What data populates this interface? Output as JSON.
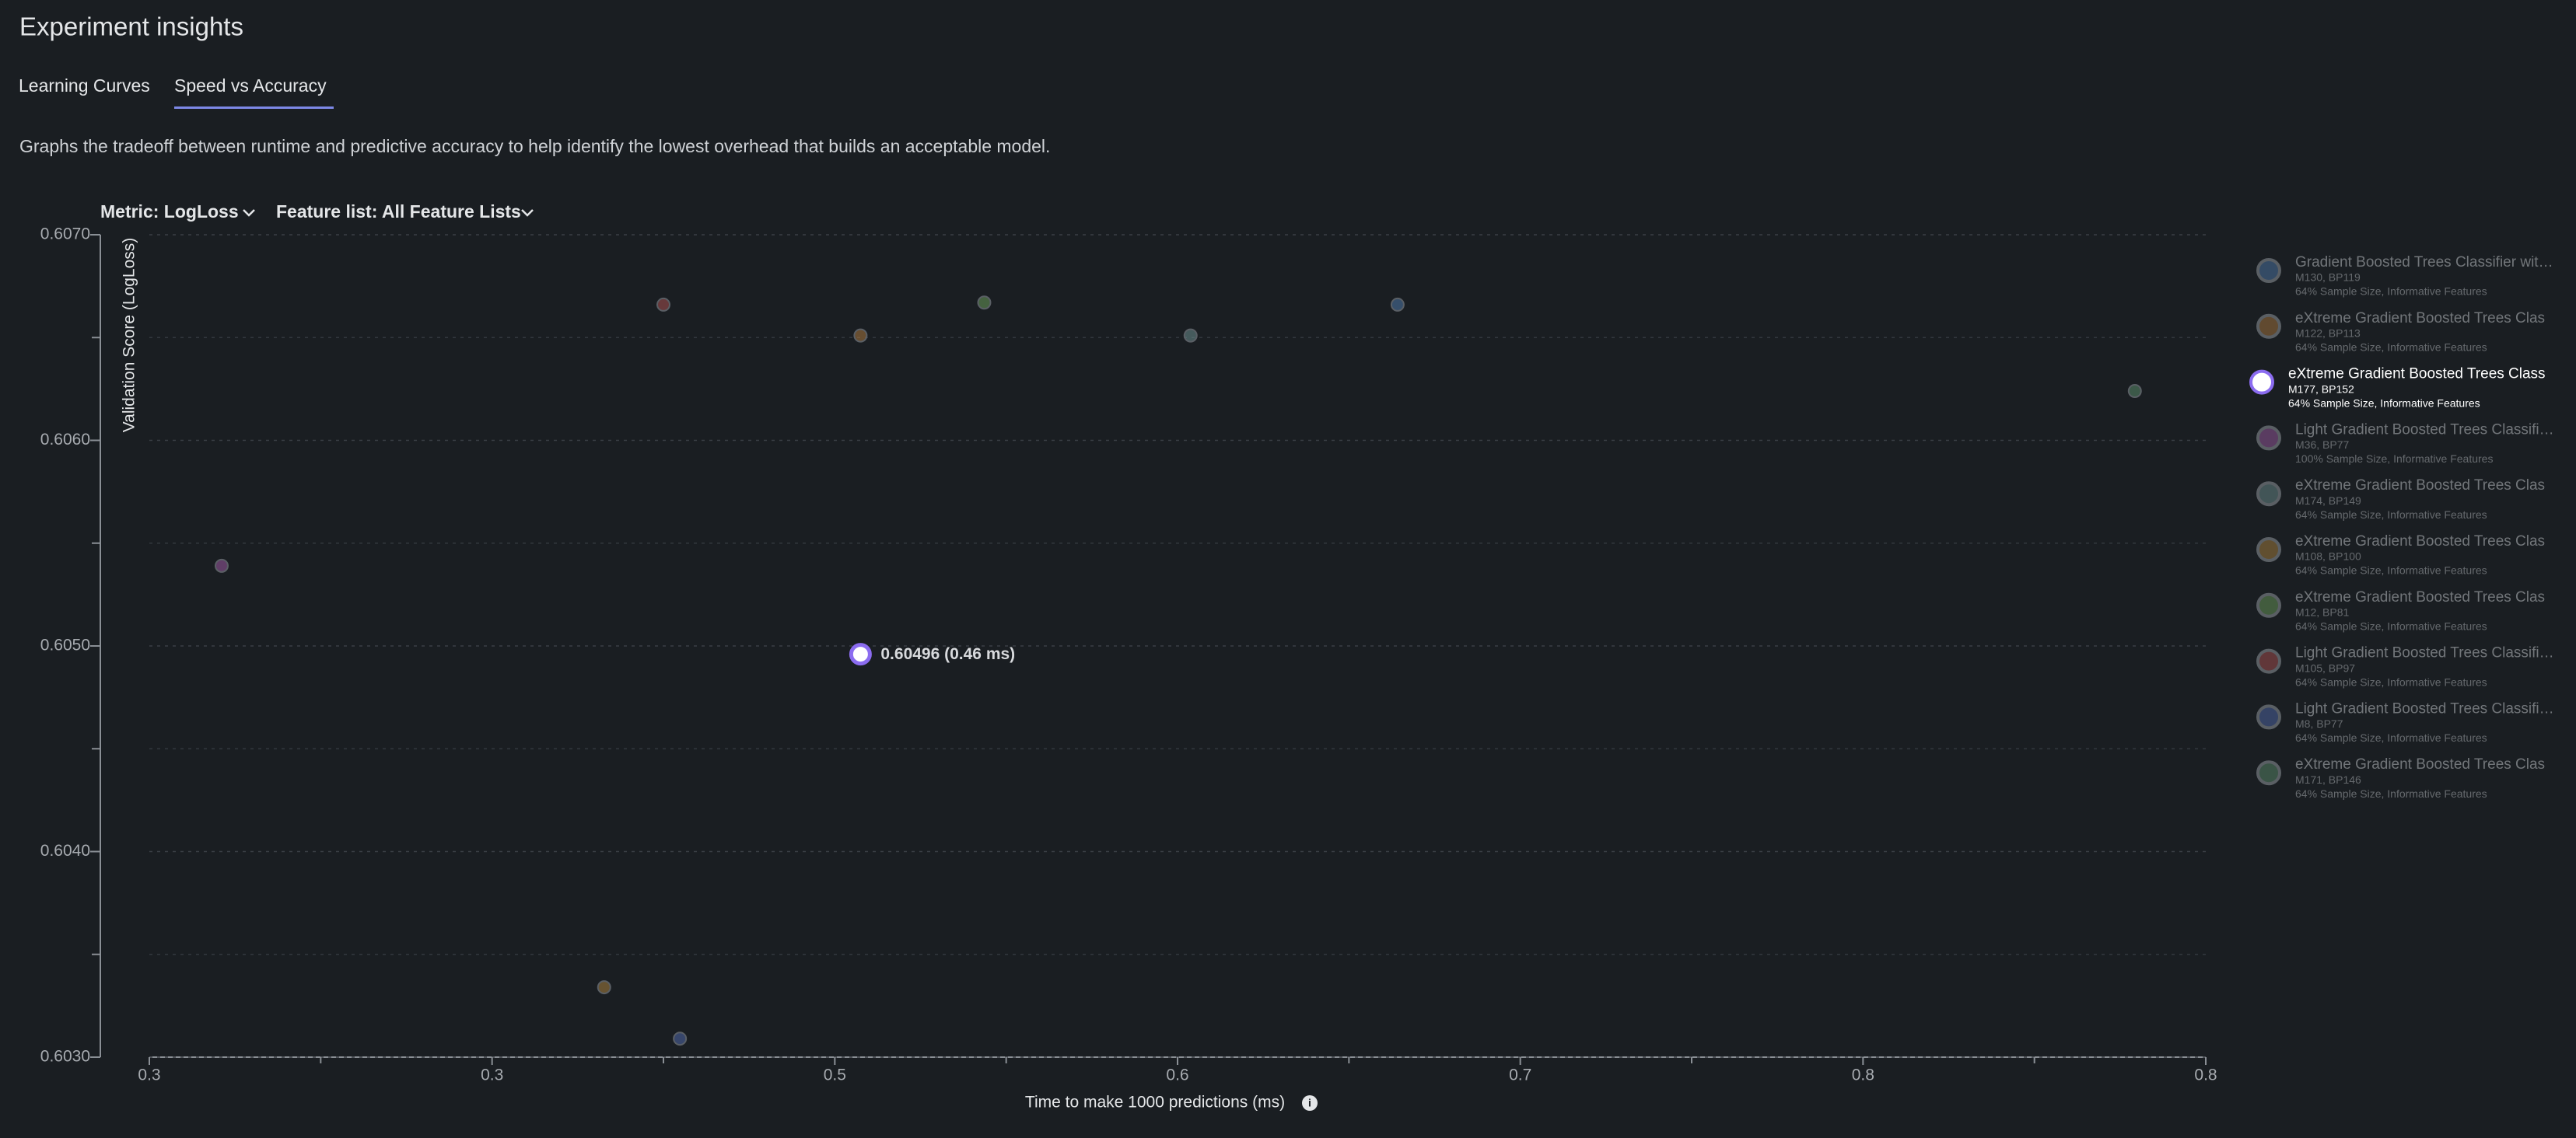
{
  "header": {
    "title": "Experiment insights",
    "tabs": [
      "Learning Curves",
      "Speed vs Accuracy"
    ],
    "active_tab": 1,
    "description": "Graphs the tradeoff between runtime and predictive accuracy to help identify the lowest overhead that builds an acceptable model.",
    "metric": "Metric: LogLoss",
    "feature_list": "Feature list: All Feature Lists"
  },
  "chart_data": {
    "type": "scatter",
    "x_label": "Time to make 1000 predictions (ms)",
    "y_label": "Validation Score (LogLoss)",
    "xlim": [
      0.25,
      0.85
    ],
    "ylim": [
      0.603,
      0.607
    ],
    "xticks": [
      {
        "value": 0.25,
        "label": "0.3"
      },
      {
        "value": 0.35,
        "label": "0.3"
      },
      {
        "value": 0.45,
        "label": "0.5"
      },
      {
        "value": 0.55,
        "label": "0.6"
      },
      {
        "value": 0.65,
        "label": "0.7"
      },
      {
        "value": 0.75,
        "label": "0.8"
      },
      {
        "value": 0.85,
        "label": "0.8"
      }
    ],
    "yticks": [
      {
        "value": 0.603,
        "label": "0.6030"
      },
      {
        "value": 0.604,
        "label": "0.6040"
      },
      {
        "value": 0.605,
        "label": "0.6050"
      },
      {
        "value": 0.606,
        "label": "0.6060"
      },
      {
        "value": 0.607,
        "label": "0.6070"
      }
    ],
    "grid": true,
    "series": [
      {
        "name": "Gradient Boosted Trees Classifier wit…",
        "model": "M130, BP119",
        "detail": "64% Sample Size, Informative Features",
        "color": "#4f78a8",
        "x": [
          0.6142
        ],
        "values": [
          0.60666
        ]
      },
      {
        "name": "eXtreme Gradient Boosted Trees Clas",
        "model": "M122, BP113",
        "detail": "64% Sample Size, Informative Features",
        "color": "#a8763e",
        "x": [
          0.4575
        ],
        "values": [
          0.60651
        ]
      },
      {
        "name": "eXtreme Gradient Boosted Trees Class",
        "model": "M177, BP152",
        "detail": "64% Sample Size, Informative Features",
        "color": "#8b6cf0",
        "highlighted": true,
        "x": [
          0.4575
        ],
        "values": [
          0.60496
        ],
        "value_labels": [
          "0.60496 (0.46 ms)"
        ]
      },
      {
        "name": "Light Gradient Boosted Trees Classifi…",
        "model": "M36, BP77",
        "detail": "100% Sample Size, Informative Features",
        "color": "#9a5aa0",
        "x": [
          0.2711
        ],
        "values": [
          0.60539
        ]
      },
      {
        "name": "eXtreme Gradient Boosted Trees Clas",
        "model": "M174, BP149",
        "detail": "64% Sample Size, Informative Features",
        "color": "#6a8c8c",
        "x": [
          0.5538
        ],
        "values": [
          0.60651
        ]
      },
      {
        "name": "eXtreme Gradient Boosted Trees Clas",
        "model": "M108, BP100",
        "detail": "64% Sample Size, Informative Features",
        "color": "#a8803e",
        "x": [
          0.3827
        ],
        "values": [
          0.60334
        ]
      },
      {
        "name": "eXtreme Gradient Boosted Trees Clas",
        "model": "M12, BP81",
        "detail": "64% Sample Size, Informative Features",
        "color": "#6a9a5a",
        "x": [
          0.4936
        ],
        "values": [
          0.60667
        ]
      },
      {
        "name": "Light Gradient Boosted Trees Classifi…",
        "model": "M105, BP97",
        "detail": "64% Sample Size, Informative Features",
        "color": "#a85050",
        "x": [
          0.4
        ],
        "values": [
          0.60666
        ]
      },
      {
        "name": "Light Gradient Boosted Trees Classifi…",
        "model": "M8, BP77",
        "detail": "64% Sample Size, Informative Features",
        "color": "#5068a8",
        "x": [
          0.4048
        ],
        "values": [
          0.60309
        ]
      },
      {
        "name": "eXtreme Gradient Boosted Trees Clas",
        "model": "M171, BP146",
        "detail": "64% Sample Size, Informative Features",
        "color": "#5a8a6a",
        "x": [
          0.8293
        ],
        "values": [
          0.60624
        ]
      }
    ]
  }
}
